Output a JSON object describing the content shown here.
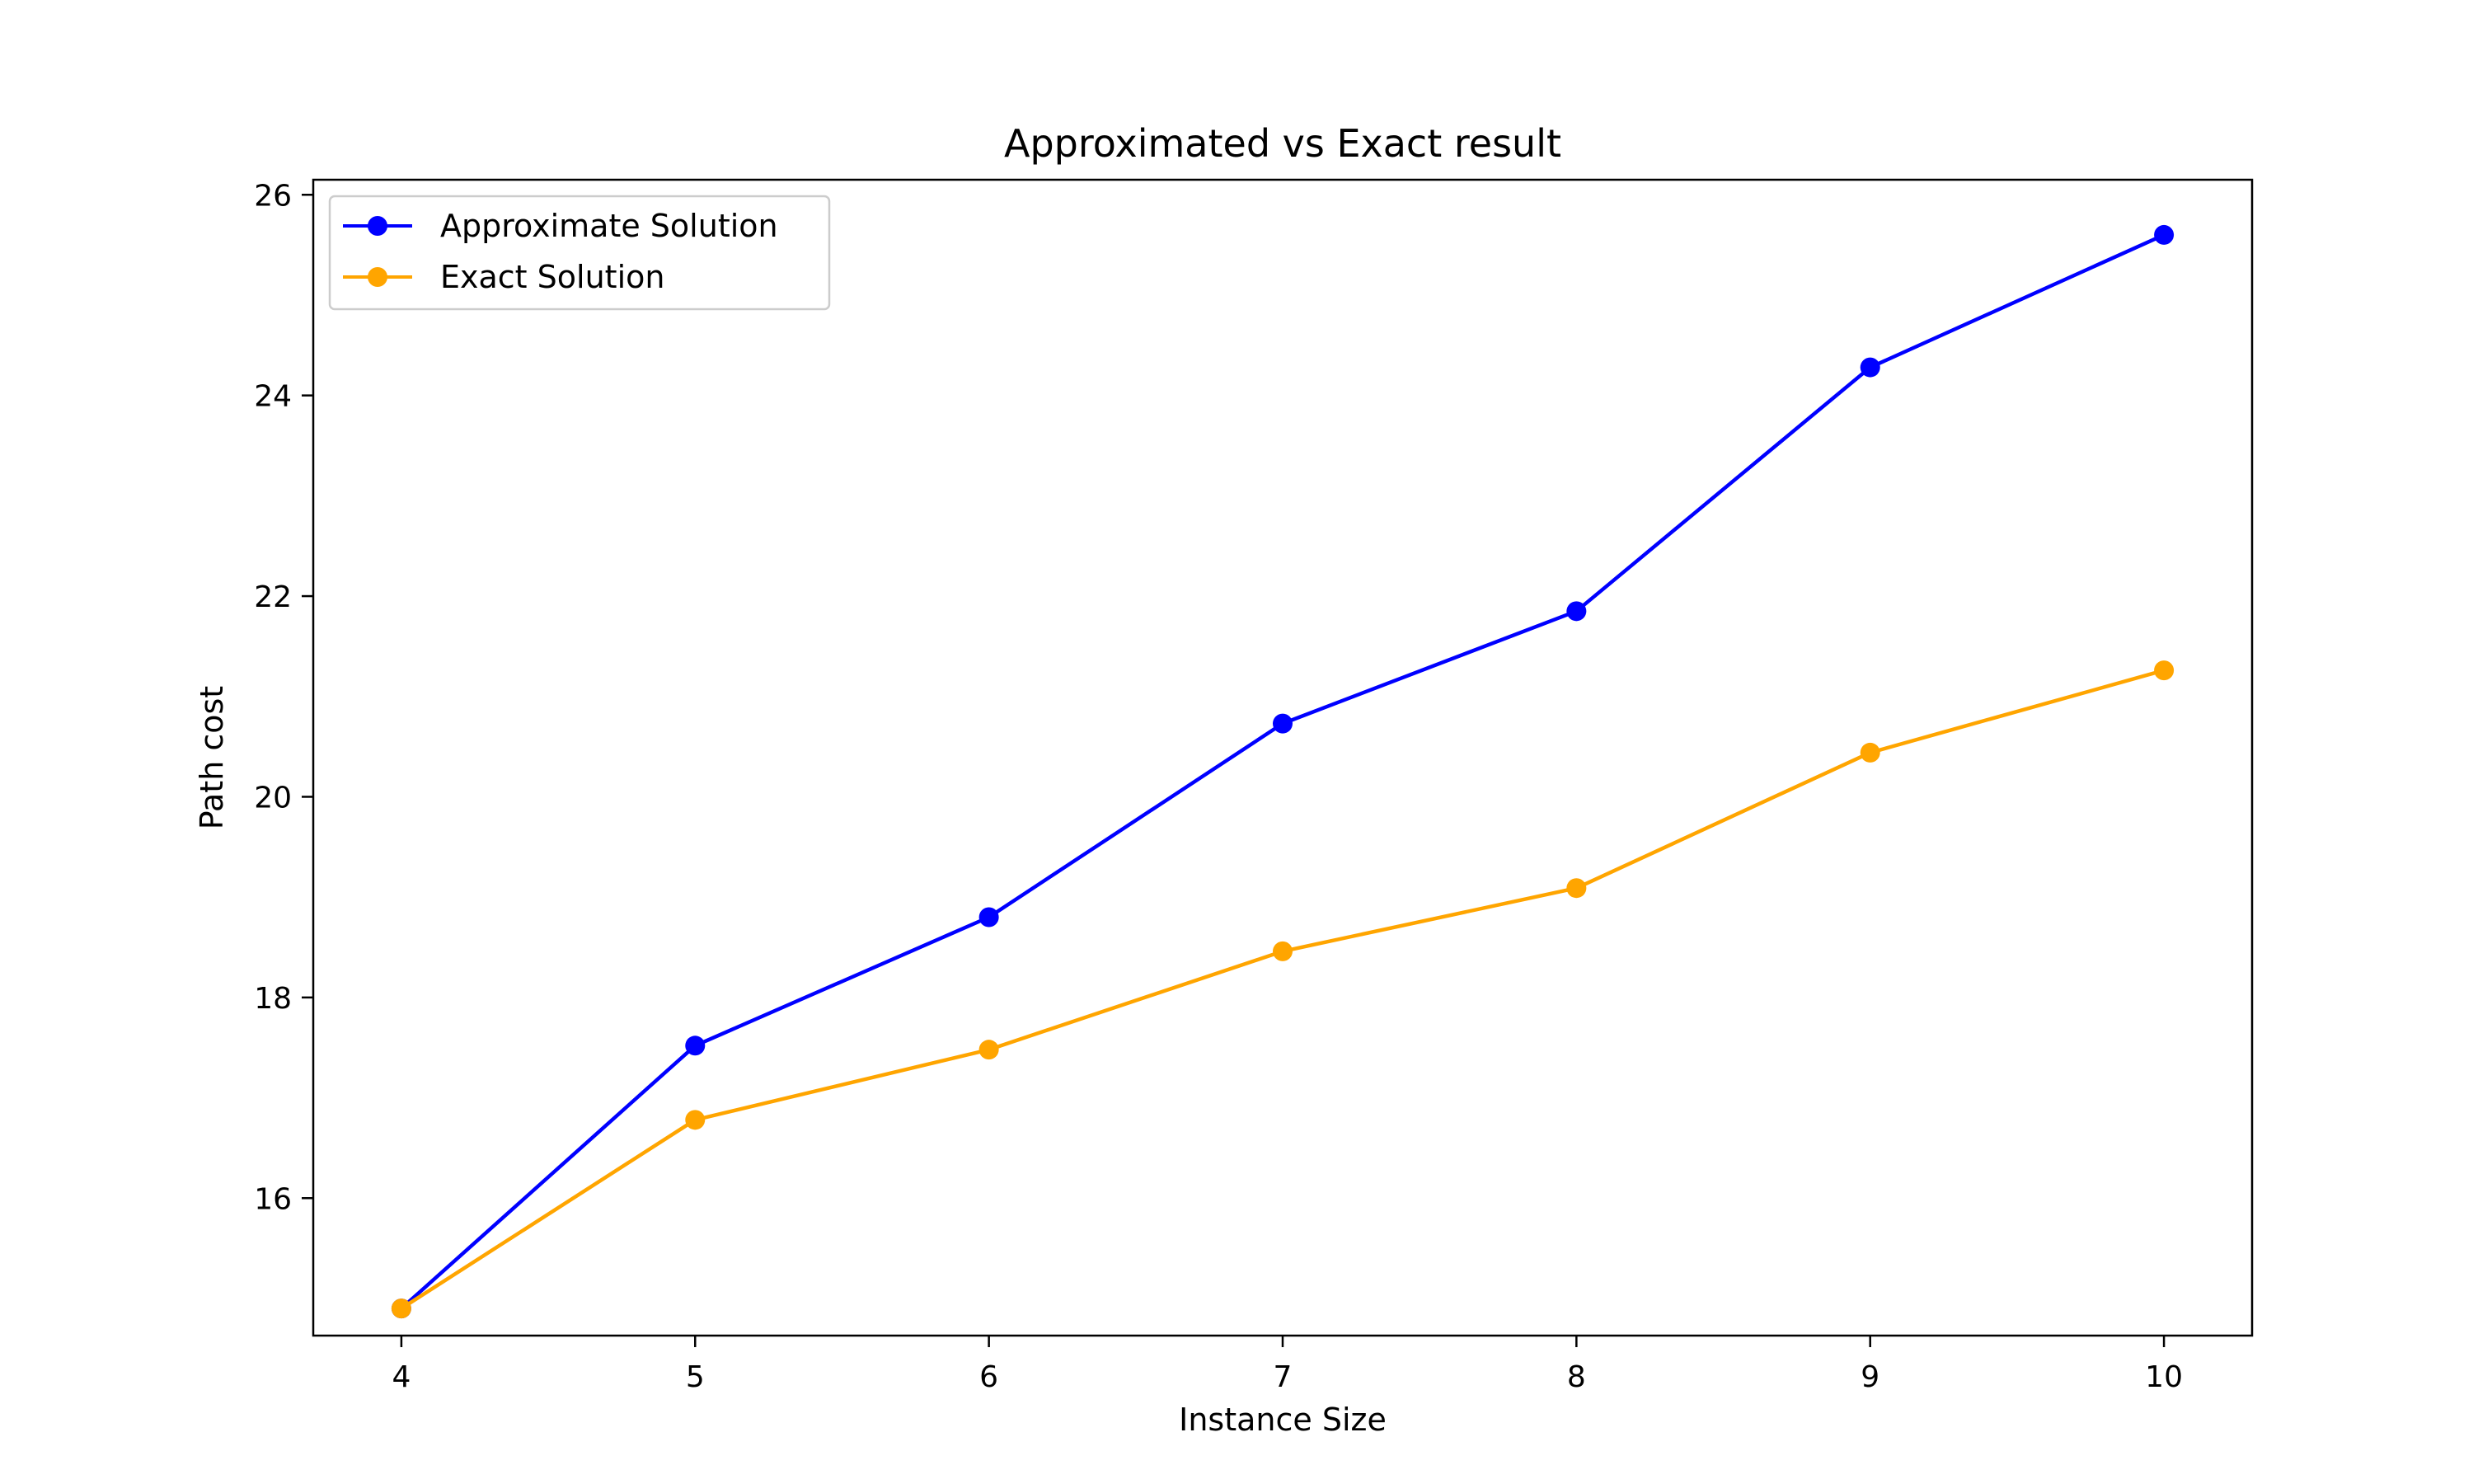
{
  "chart_data": {
    "type": "line",
    "title": "Approximated vs Exact result",
    "xlabel": "Instance Size",
    "ylabel": "Path cost",
    "x": [
      4,
      5,
      6,
      7,
      8,
      9,
      10
    ],
    "xlim": [
      3.7,
      10.3
    ],
    "ylim": [
      14.63,
      26.15
    ],
    "xticks": [
      4,
      5,
      6,
      7,
      8,
      9,
      10
    ],
    "yticks": [
      16,
      18,
      20,
      22,
      24,
      26
    ],
    "grid": false,
    "legend_position": "top-left",
    "series": [
      {
        "name": "Approximate Solution",
        "color": "#0000ff",
        "marker": "circle",
        "values": [
          14.9,
          17.52,
          18.8,
          20.73,
          21.85,
          24.28,
          25.6
        ]
      },
      {
        "name": "Exact Solution",
        "color": "#ffa500",
        "marker": "circle",
        "values": [
          14.9,
          16.78,
          17.48,
          18.46,
          19.09,
          20.44,
          21.26
        ]
      }
    ]
  }
}
